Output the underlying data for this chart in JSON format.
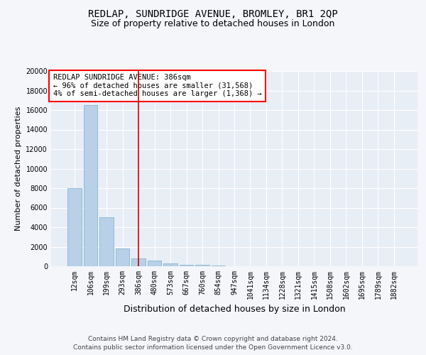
{
  "title": "REDLAP, SUNDRIDGE AVENUE, BROMLEY, BR1 2QP",
  "subtitle": "Size of property relative to detached houses in London",
  "xlabel": "Distribution of detached houses by size in London",
  "ylabel": "Number of detached properties",
  "categories": [
    "12sqm",
    "106sqm",
    "199sqm",
    "293sqm",
    "386sqm",
    "480sqm",
    "573sqm",
    "667sqm",
    "760sqm",
    "854sqm",
    "947sqm",
    "1041sqm",
    "1134sqm",
    "1228sqm",
    "1321sqm",
    "1415sqm",
    "1508sqm",
    "1602sqm",
    "1695sqm",
    "1789sqm",
    "1882sqm"
  ],
  "values": [
    8000,
    16500,
    5000,
    1800,
    800,
    600,
    280,
    180,
    140,
    100,
    30,
    10,
    5,
    3,
    2,
    1,
    1,
    0,
    0,
    0,
    0
  ],
  "bar_color": "#b8d0e8",
  "bar_edgecolor": "#7aaec8",
  "highlight_index": 4,
  "highlight_color": "#cc0000",
  "ylim": [
    0,
    20000
  ],
  "yticks": [
    0,
    2000,
    4000,
    6000,
    8000,
    10000,
    12000,
    14000,
    16000,
    18000,
    20000
  ],
  "annotation_line1": "REDLAP SUNDRIDGE AVENUE: 386sqm",
  "annotation_line2": "← 96% of detached houses are smaller (31,568)",
  "annotation_line3": "4% of semi-detached houses are larger (1,368) →",
  "footnote1": "Contains HM Land Registry data © Crown copyright and database right 2024.",
  "footnote2": "Contains public sector information licensed under the Open Government Licence v3.0.",
  "background_color": "#f4f6fa",
  "plot_bg_color": "#e8eef6",
  "grid_color": "#ffffff",
  "title_fontsize": 10,
  "subtitle_fontsize": 9,
  "xlabel_fontsize": 9,
  "ylabel_fontsize": 8,
  "tick_fontsize": 7,
  "annotation_fontsize": 7.5,
  "footnote_fontsize": 6.5
}
